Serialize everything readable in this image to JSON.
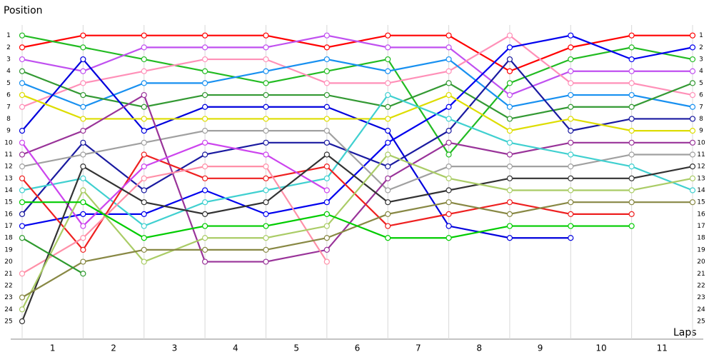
{
  "chart_data": {
    "type": "line",
    "y_label": "Position",
    "x_label": "Laps",
    "x": [
      0,
      1,
      2,
      3,
      4,
      5,
      6,
      7,
      8,
      9,
      10,
      11
    ],
    "xlim": [
      0,
      11
    ],
    "xticks": [
      {
        "value": 0.5,
        "label": "1"
      },
      {
        "value": 1.5,
        "label": "2"
      },
      {
        "value": 2.5,
        "label": "3"
      },
      {
        "value": 3.5,
        "label": "4"
      },
      {
        "value": 4.5,
        "label": "5"
      },
      {
        "value": 5.5,
        "label": "6"
      },
      {
        "value": 6.5,
        "label": "7"
      },
      {
        "value": 7.5,
        "label": "8"
      },
      {
        "value": 8.5,
        "label": "9"
      },
      {
        "value": 9.5,
        "label": "10"
      },
      {
        "value": 10.5,
        "label": "11"
      }
    ],
    "ylim": [
      0,
      26.5
    ],
    "y_reversed": true,
    "yticks": [
      1,
      2,
      3,
      4,
      5,
      6,
      7,
      8,
      9,
      10,
      11,
      12,
      13,
      14,
      15,
      16,
      17,
      18,
      19,
      20,
      21,
      22,
      23,
      24,
      25
    ],
    "grid": true,
    "series": [
      {
        "color": "#ff0000",
        "values": [
          2,
          1,
          1,
          1,
          1,
          2,
          1,
          1,
          4,
          2,
          1,
          1
        ]
      },
      {
        "color": "#22bb22",
        "values": [
          1,
          2,
          3,
          4,
          5,
          4,
          3,
          11,
          5,
          3,
          2,
          3
        ]
      },
      {
        "color": "#c050f0",
        "values": [
          3,
          4,
          2,
          2,
          2,
          1,
          2,
          2,
          6,
          4,
          4,
          4
        ]
      },
      {
        "color": "#ff90b8",
        "values": [
          7,
          5,
          4,
          3,
          3,
          5,
          5,
          4,
          1,
          5,
          5,
          6
        ]
      },
      {
        "color": "#1890f0",
        "values": [
          5,
          7,
          5,
          5,
          4,
          3,
          4,
          3,
          7,
          6,
          6,
          7
        ]
      },
      {
        "color": "#339933",
        "values": [
          4,
          6,
          7,
          6,
          6,
          6,
          7,
          5,
          8,
          7,
          7,
          5
        ]
      },
      {
        "color": "#0000dd",
        "values": [
          9,
          3,
          9,
          7,
          7,
          7,
          9,
          17,
          18,
          18,
          null,
          null
        ]
      },
      {
        "color": "#0000ee",
        "values": [
          17,
          16,
          16,
          14,
          16,
          15,
          10,
          7,
          2,
          1,
          3,
          2
        ]
      },
      {
        "color": "#1a1aa0",
        "values": [
          16,
          10,
          14,
          11,
          10,
          10,
          12,
          9,
          3,
          9,
          8,
          8
        ]
      },
      {
        "color": "#dddd00",
        "values": [
          6,
          8,
          8,
          8,
          8,
          8,
          8,
          6,
          9,
          8,
          9,
          9
        ]
      },
      {
        "color": "#a0a0a0",
        "values": [
          12,
          11,
          10,
          9,
          9,
          9,
          14,
          12,
          12,
          12,
          11,
          11
        ]
      },
      {
        "color": "#993399",
        "values": [
          11,
          9,
          6,
          20,
          20,
          19,
          13,
          10,
          11,
          10,
          10,
          10
        ]
      },
      {
        "color": "#40d0d0",
        "values": [
          14,
          13,
          17,
          15,
          14,
          13,
          6,
          8,
          10,
          11,
          12,
          14
        ]
      },
      {
        "color": "#ee2020",
        "values": [
          13,
          19,
          11,
          13,
          13,
          12,
          17,
          16,
          15,
          16,
          16,
          null
        ]
      },
      {
        "color": "#cc44ee",
        "values": [
          10,
          17,
          12,
          10,
          11,
          14,
          null,
          null,
          null,
          null,
          null,
          null
        ]
      },
      {
        "color": "#ff90a8",
        "values": [
          21,
          18,
          13,
          12,
          12,
          20,
          null,
          null,
          null,
          null,
          null,
          null
        ]
      },
      {
        "color": "#333333",
        "values": [
          25,
          12,
          15,
          16,
          15,
          11,
          15,
          14,
          13,
          13,
          13,
          12
        ]
      },
      {
        "color": "#aacc66",
        "values": [
          24,
          14,
          20,
          18,
          18,
          17,
          11,
          13,
          14,
          14,
          14,
          13
        ]
      },
      {
        "color": "#888844",
        "values": [
          23,
          20,
          19,
          19,
          19,
          18,
          16,
          15,
          16,
          15,
          15,
          15
        ]
      },
      {
        "color": "#00cc00",
        "values": [
          15,
          15,
          18,
          17,
          17,
          16,
          18,
          18,
          17,
          17,
          17,
          null
        ]
      },
      {
        "color": "#2e9a2e",
        "values": [
          18,
          21,
          null,
          null,
          null,
          null,
          null,
          null,
          null,
          null,
          null,
          null
        ]
      }
    ]
  }
}
